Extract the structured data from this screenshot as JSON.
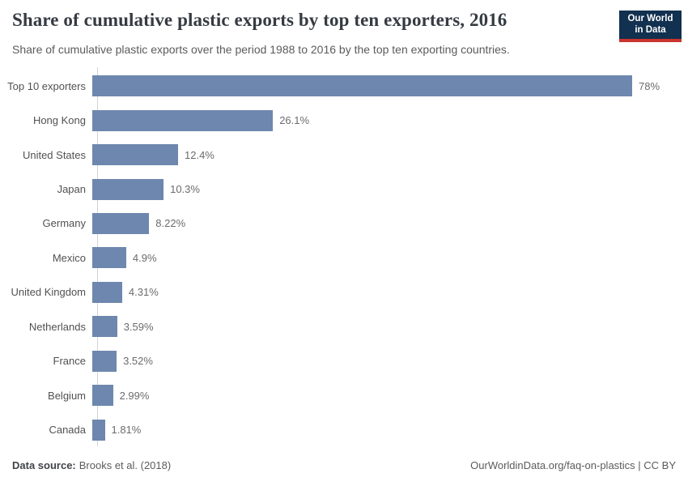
{
  "header": {
    "title": "Share of cumulative plastic exports by top ten exporters, 2016",
    "subtitle": "Share of cumulative plastic exports over the period 1988 to 2016 by the top ten exporting countries.",
    "logo": {
      "line1": "Our World",
      "line2": "in Data"
    }
  },
  "chart_data": {
    "type": "bar",
    "orientation": "horizontal",
    "title": "Share of cumulative plastic exports by top ten exporters, 2016",
    "subtitle": "Share of cumulative plastic exports over the period 1988 to 2016 by the top ten exporting countries.",
    "categories": [
      "Top 10 exporters",
      "Hong Kong",
      "United States",
      "Japan",
      "Germany",
      "Mexico",
      "United Kingdom",
      "Netherlands",
      "France",
      "Belgium",
      "Canada"
    ],
    "values": [
      78,
      26.1,
      12.4,
      10.3,
      8.22,
      4.9,
      4.31,
      3.59,
      3.52,
      2.99,
      1.81
    ],
    "value_labels": [
      "78%",
      "26.1%",
      "12.4%",
      "10.3%",
      "8.22%",
      "4.9%",
      "4.31%",
      "3.59%",
      "3.52%",
      "2.99%",
      "1.81%"
    ],
    "xlabel": "",
    "ylabel": "",
    "xlim": [
      0,
      78
    ],
    "grid": false,
    "legend": "none",
    "bar_color": "#6e87ae",
    "axis_color": "#d3d3d3"
  },
  "footer": {
    "source_label": "Data source:",
    "source_value": "Brooks et al. (2018)",
    "credit": "OurWorldinData.org/faq-on-plastics | CC BY"
  }
}
